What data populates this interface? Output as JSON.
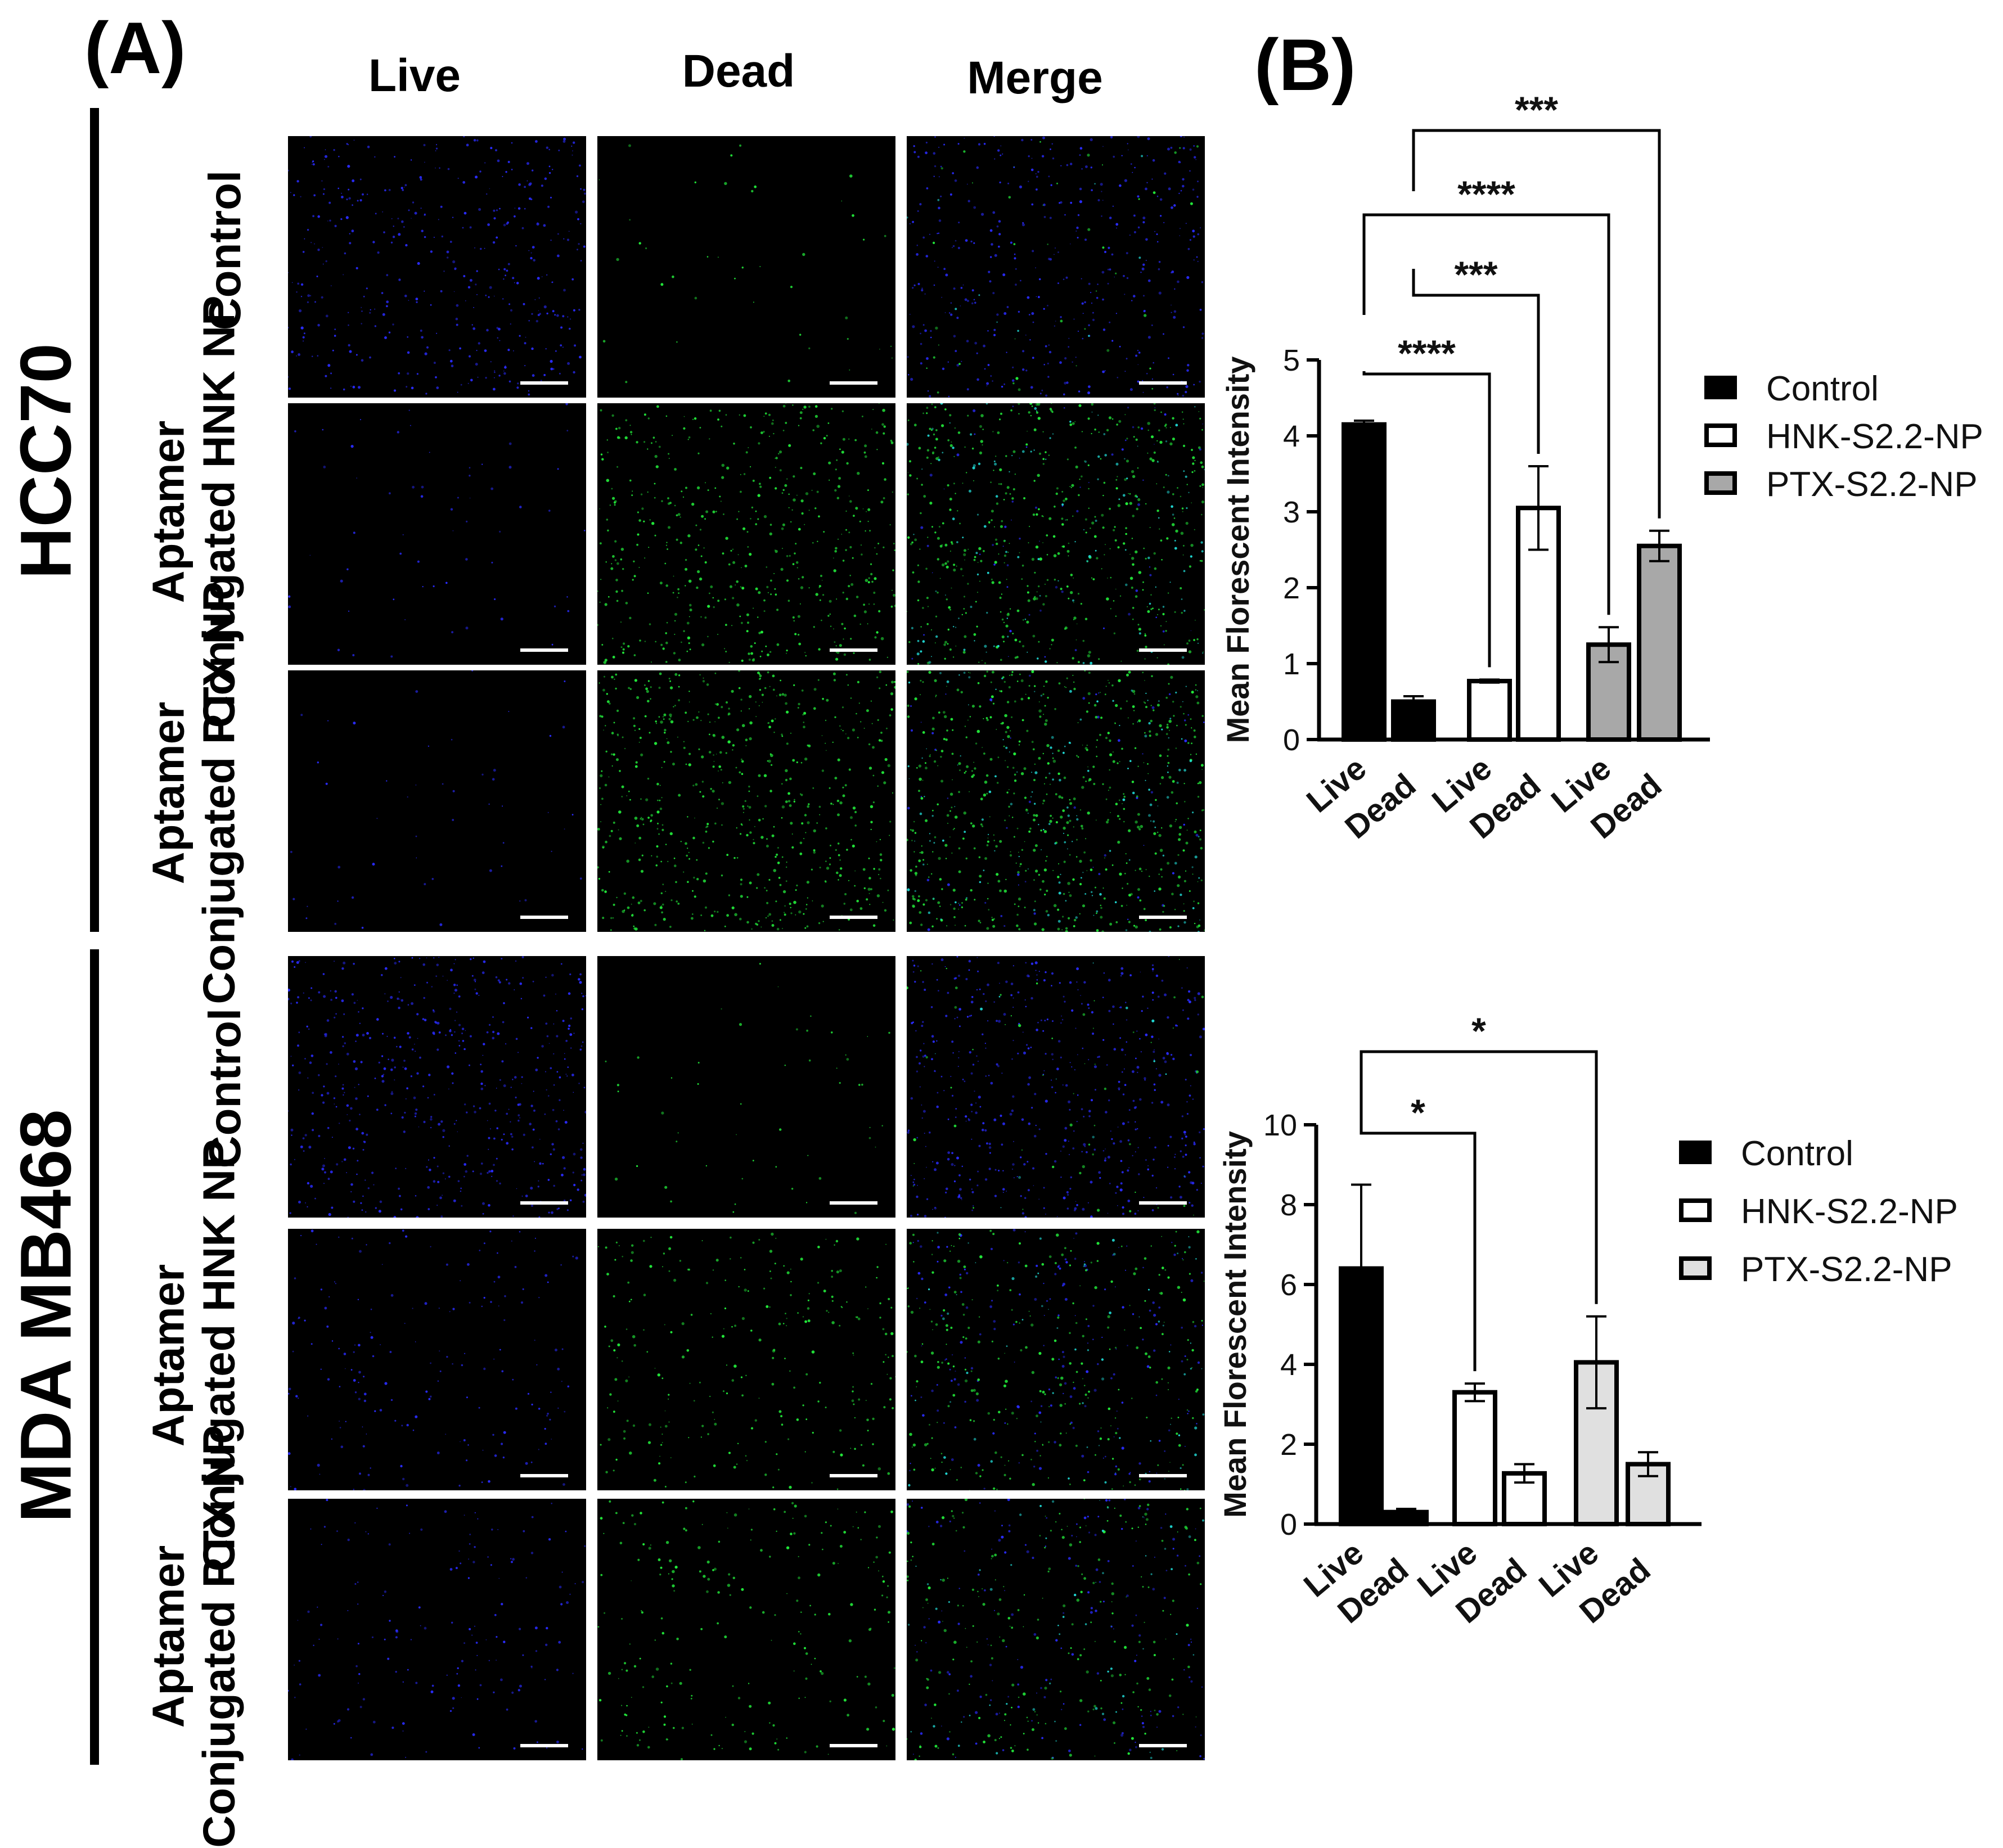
{
  "panel_a_label": "(A)",
  "panel_b_label": "(B)",
  "columns": [
    "Live",
    "Dead",
    "Merge"
  ],
  "groups": [
    {
      "label": "HCC70",
      "rows": [
        {
          "line1": "Control",
          "line2": ""
        },
        {
          "line1": "Aptamer",
          "line2": "Conjugated HNK NP"
        },
        {
          "line1": "Aptamer",
          "line2": "Conjugated PTX NP"
        }
      ]
    },
    {
      "label": "MDA MB468",
      "rows": [
        {
          "line1": "Control",
          "line2": ""
        },
        {
          "line1": "Aptamer",
          "line2": "Conjugated HNK NP"
        },
        {
          "line1": "Aptamer",
          "line2": "Conjugated PTX NP"
        }
      ]
    }
  ],
  "colors": {
    "live_stain": "#2a2cff",
    "dead_stain": "#22e83a",
    "merge_cyan": "#20d7d2",
    "control_bar": "#000000",
    "hnk_bar": "#ffffff",
    "ptx_bar_hcc70": "#a8a8a8",
    "ptx_bar_mda": "#e0e0e0"
  },
  "chart_data": [
    {
      "type": "bar",
      "cell_line": "HCC70",
      "ylabel": "Mean Florescent Intensity",
      "ylim": [
        0,
        5
      ],
      "yticks": [
        0,
        1,
        2,
        3,
        4,
        5
      ],
      "categories": [
        "Live",
        "Dead",
        "Live",
        "Dead",
        "Live",
        "Dead"
      ],
      "series": [
        {
          "name": "Control",
          "live": 4.15,
          "dead": 0.5,
          "live_err": 0.05,
          "dead_err": 0.07
        },
        {
          "name": "HNK-S2.2-NP",
          "live": 0.77,
          "dead": 3.05,
          "live_err": 0.02,
          "dead_err": 0.55
        },
        {
          "name": "PTX-S2.2-NP",
          "live": 1.25,
          "dead": 2.55,
          "live_err": 0.23,
          "dead_err": 0.2
        }
      ],
      "significance": [
        {
          "from": 0,
          "to": 2,
          "label": "****"
        },
        {
          "from": 1,
          "to": 3,
          "label": "***"
        },
        {
          "from": 0,
          "to": 4,
          "label": "****"
        },
        {
          "from": 1,
          "to": 5,
          "label": "***"
        }
      ],
      "legend": [
        "Control",
        "HNK-S2.2-NP",
        "PTX-S2.2-NP"
      ]
    },
    {
      "type": "bar",
      "cell_line": "MDA MB468",
      "ylabel": "Mean Florescent Intensity",
      "ylim": [
        0,
        10
      ],
      "yticks": [
        0,
        2,
        4,
        6,
        8,
        10
      ],
      "categories": [
        "Live",
        "Dead",
        "Live",
        "Dead",
        "Live",
        "Dead"
      ],
      "series": [
        {
          "name": "Control",
          "live": 6.4,
          "dead": 0.3,
          "live_err": 2.1,
          "dead_err": 0.08
        },
        {
          "name": "HNK-S2.2-NP",
          "live": 3.3,
          "dead": 1.27,
          "live_err": 0.22,
          "dead_err": 0.23
        },
        {
          "name": "PTX-S2.2-NP",
          "live": 4.05,
          "dead": 1.5,
          "live_err": 1.15,
          "dead_err": 0.3
        }
      ],
      "significance": [
        {
          "from": 0,
          "to": 2,
          "label": "*"
        },
        {
          "from": 0,
          "to": 4,
          "label": "*"
        }
      ],
      "legend": [
        "Control",
        "HNK-S2.2-NP",
        "PTX-S2.2-NP"
      ]
    }
  ]
}
